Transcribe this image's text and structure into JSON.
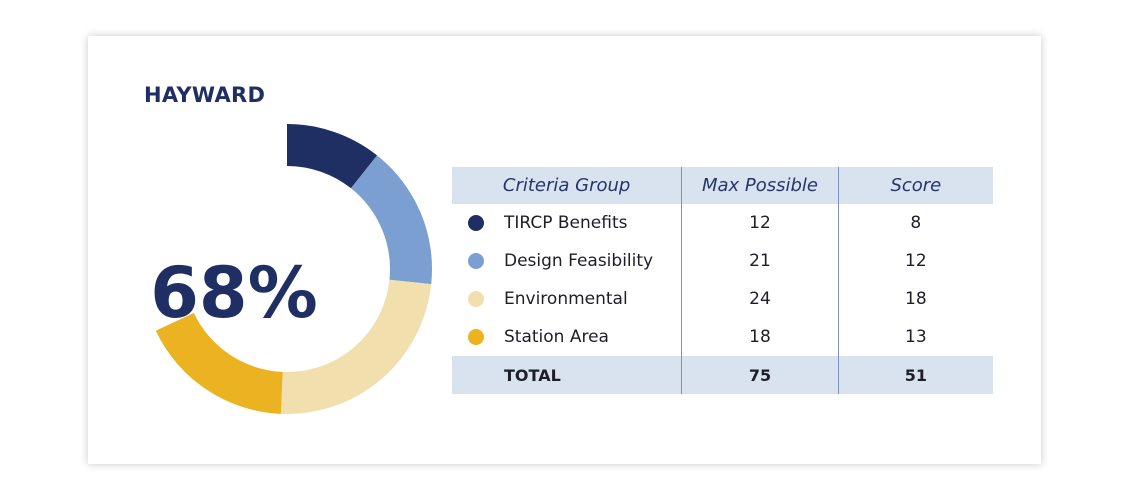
{
  "title": "HAYWARD",
  "summary": {
    "percent_label": "68%",
    "percent_value": 68
  },
  "table": {
    "headers": [
      "Criteria Group",
      "Max Possible",
      "Score"
    ],
    "rows": [
      {
        "name": "TIRCP Benefits",
        "max": "12",
        "score": "8",
        "color": "#1f2f63"
      },
      {
        "name": "Design Feasibility",
        "max": "21",
        "score": "12",
        "color": "#7b9fd0"
      },
      {
        "name": "Environmental",
        "max": "24",
        "score": "18",
        "color": "#f1dfae"
      },
      {
        "name": "Station Area",
        "max": "18",
        "score": "13",
        "color": "#ebb222"
      }
    ],
    "total": {
      "name": "TOTAL",
      "max": "75",
      "score": "51"
    }
  },
  "chart_data": {
    "type": "pie",
    "title": "HAYWARD",
    "center_label": "68%",
    "categories": [
      "TIRCP Benefits",
      "Design Feasibility",
      "Environmental",
      "Station Area"
    ],
    "values": [
      8,
      12,
      18,
      13
    ],
    "max_values": [
      12,
      21,
      24,
      18
    ],
    "total_score": 51,
    "total_max": 75,
    "colors": [
      "#1f2f63",
      "#7b9fd0",
      "#f1dfae",
      "#ebb222"
    ]
  }
}
